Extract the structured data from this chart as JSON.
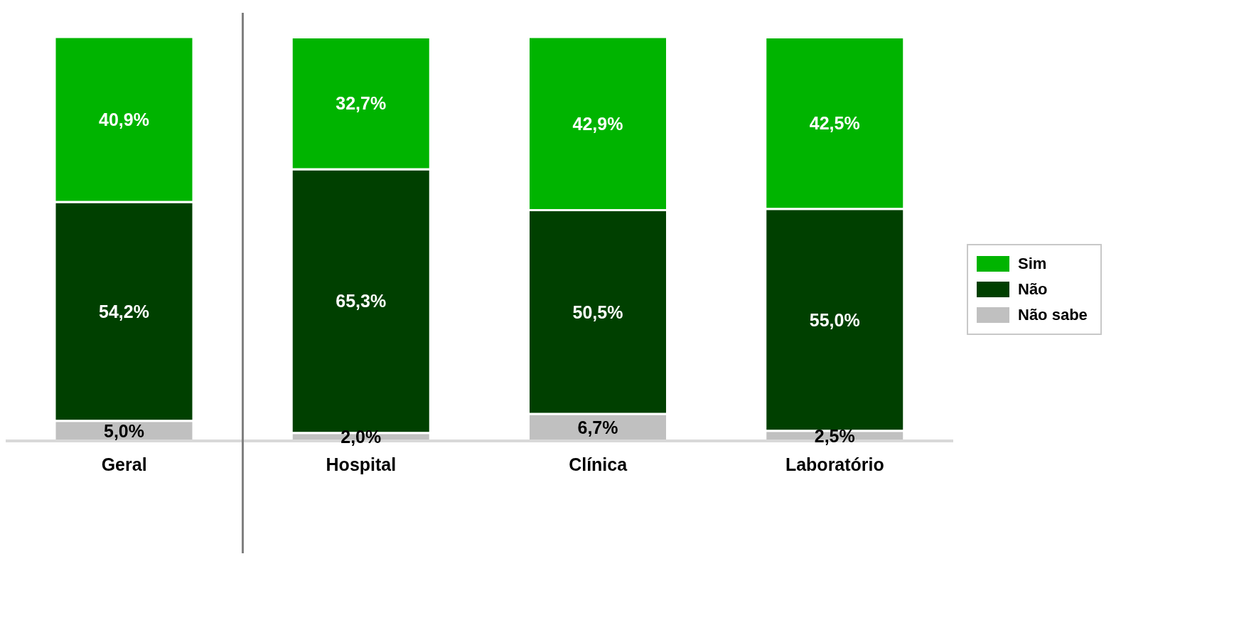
{
  "chart_data": {
    "type": "bar",
    "stacked": true,
    "categories": [
      "Geral",
      "Hospital",
      "Clínica",
      "Laboratório"
    ],
    "series": [
      {
        "name": "Não sabe",
        "color": "#c0c0c0",
        "values": [
          5.0,
          2.0,
          6.7,
          2.5
        ],
        "value_labels": [
          "5,0%",
          "2,0%",
          "6,7%",
          "2,5%"
        ]
      },
      {
        "name": "Não",
        "color": "#004000",
        "values": [
          54.2,
          65.3,
          50.5,
          55.0
        ],
        "value_labels": [
          "54,2%",
          "65,3%",
          "50,5%",
          "55,0%"
        ]
      },
      {
        "name": "Sim",
        "color": "#00b400",
        "values": [
          40.9,
          32.7,
          42.9,
          42.5
        ],
        "value_labels": [
          "40,9%",
          "32,7%",
          "42,9%",
          "42,5%"
        ]
      }
    ],
    "legend": "right"
  }
}
